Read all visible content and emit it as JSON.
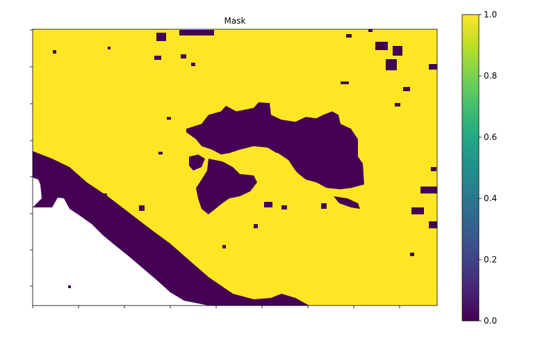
{
  "chart_data": [
    {
      "type": "heatmap",
      "title": "Mask",
      "description_values": "binary mask; 1 = yellow region, 0 = dark purple region, blank = white (no data)",
      "values_present": [
        0,
        1
      ],
      "nodata_color": "#ffffff",
      "x_ticks_labeled": false,
      "y_ticks_labeled": false,
      "x_tick_count": 10,
      "y_tick_count": 8,
      "colorbar": {
        "colormap": "viridis",
        "range": [
          0.0,
          1.0
        ],
        "ticks": [
          "0.0",
          "0.2",
          "0.4",
          "0.6",
          "0.8",
          "1.0"
        ],
        "tick_values": [
          0.0,
          0.2,
          0.4,
          0.6,
          0.8,
          1.0
        ]
      },
      "colors": {
        "one": "#fde725",
        "zero": "#440154",
        "nodata": "#ffffff"
      }
    }
  ]
}
